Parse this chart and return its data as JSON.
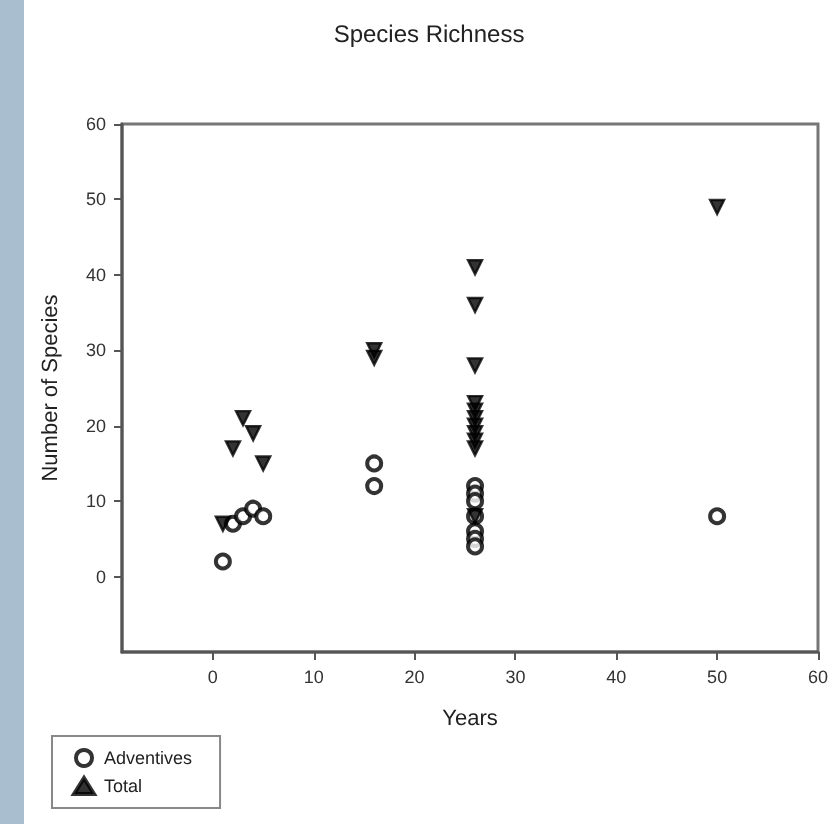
{
  "chart_data": {
    "type": "scatter",
    "title": "Species Richness",
    "xlabel": "Years",
    "ylabel": "Number of Species",
    "xlim": [
      -9,
      60
    ],
    "xticks": [
      0,
      10,
      20,
      30,
      40,
      50,
      60
    ],
    "ylim": [
      -10,
      60
    ],
    "yticks": [
      0,
      10,
      20,
      30,
      40,
      50,
      60
    ],
    "grid": false,
    "legend": "bottom left",
    "series": [
      {
        "name": "Adventives",
        "color": "#000000",
        "marker": "circle",
        "x": [
          1,
          2,
          3,
          4,
          5,
          16,
          16,
          26,
          26,
          26,
          26,
          26,
          26,
          26,
          50
        ],
        "values": [
          2,
          7,
          8,
          9,
          8,
          15,
          12,
          12,
          11,
          10,
          8,
          6,
          5,
          4,
          8
        ]
      },
      {
        "name": "Total",
        "color": "#000000",
        "marker": "triangle",
        "x": [
          1,
          2,
          3,
          4,
          5,
          16,
          16,
          26,
          26,
          26,
          26,
          26,
          26,
          26,
          26,
          26,
          26,
          26,
          50
        ],
        "values": [
          7,
          17,
          21,
          19,
          15,
          30,
          29,
          41,
          36,
          28,
          23,
          22,
          21,
          20,
          19,
          18,
          17,
          8,
          49
        ]
      }
    ]
  }
}
